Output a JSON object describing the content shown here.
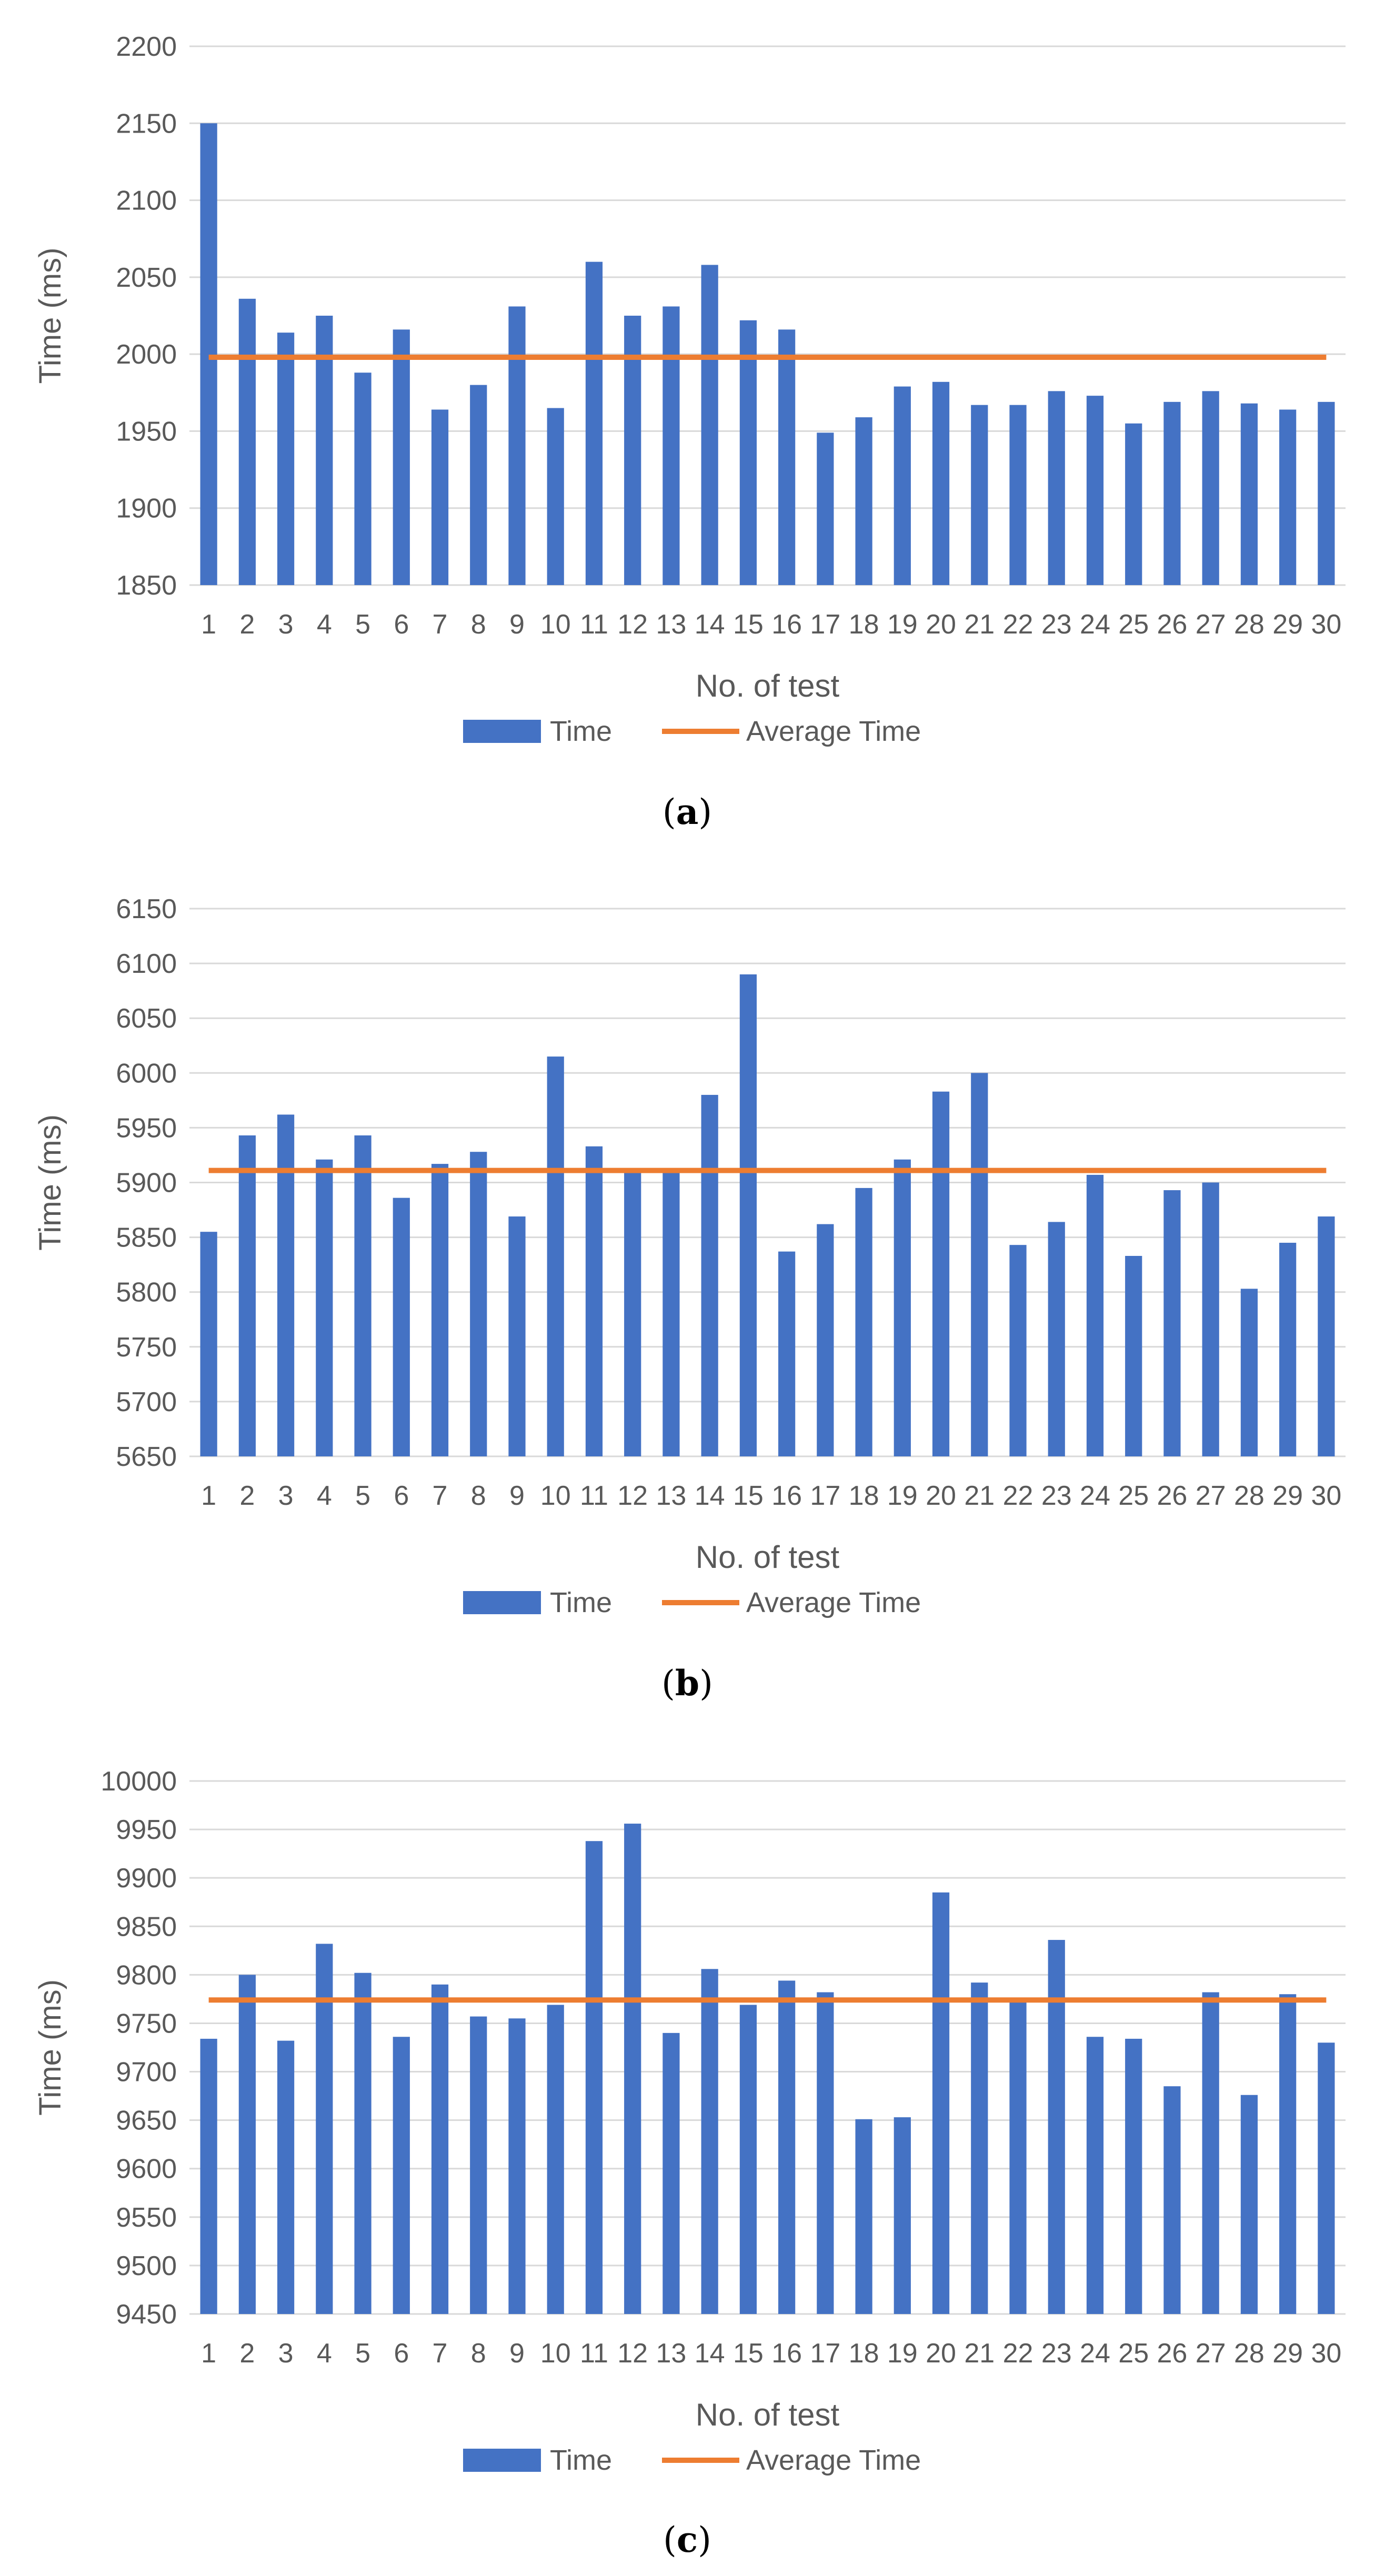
{
  "charts": [
    {
      "caption": {
        "open": "(",
        "letter": "a",
        "close": ")"
      },
      "chart_data": {
        "type": "bar",
        "categories": [
          "1",
          "2",
          "3",
          "4",
          "5",
          "6",
          "7",
          "8",
          "9",
          "10",
          "11",
          "12",
          "13",
          "14",
          "15",
          "16",
          "17",
          "18",
          "19",
          "20",
          "21",
          "22",
          "23",
          "24",
          "25",
          "26",
          "27",
          "28",
          "29",
          "30"
        ],
        "series": [
          {
            "name": "Time",
            "type": "bar",
            "color": "#4472C4",
            "values": [
              2150,
              2036,
              2014,
              2025,
              1988,
              2016,
              1964,
              1980,
              2031,
              1965,
              2060,
              2025,
              2031,
              2058,
              2022,
              2016,
              1949,
              1959,
              1979,
              1982,
              1967,
              1967,
              1976,
              1973,
              1955,
              1969,
              1976,
              1968,
              1964,
              1969
            ]
          },
          {
            "name": "Average Time",
            "type": "line",
            "color": "#ED7D31",
            "value": 1998
          }
        ],
        "xlabel": "No. of test",
        "ylabel": "Time (ms)",
        "ylim": [
          1850,
          2200
        ],
        "yticks": [
          1850,
          1900,
          1950,
          2000,
          2050,
          2100,
          2150,
          2200
        ],
        "grid": true,
        "legend": "bottom"
      }
    },
    {
      "caption": {
        "open": "(",
        "letter": "b",
        "close": ")"
      },
      "chart_data": {
        "type": "bar",
        "categories": [
          "1",
          "2",
          "3",
          "4",
          "5",
          "6",
          "7",
          "8",
          "9",
          "10",
          "11",
          "12",
          "13",
          "14",
          "15",
          "16",
          "17",
          "18",
          "19",
          "20",
          "21",
          "22",
          "23",
          "24",
          "25",
          "26",
          "27",
          "28",
          "29",
          "30"
        ],
        "series": [
          {
            "name": "Time",
            "type": "bar",
            "color": "#4472C4",
            "values": [
              5855,
              5943,
              5962,
              5921,
              5943,
              5886,
              5917,
              5928,
              5869,
              6015,
              5933,
              5910,
              5910,
              5980,
              6090,
              5837,
              5862,
              5895,
              5921,
              5983,
              6000,
              5843,
              5864,
              5907,
              5833,
              5893,
              5900,
              5803,
              5845,
              5869
            ]
          },
          {
            "name": "Average Time",
            "type": "line",
            "color": "#ED7D31",
            "value": 5911
          }
        ],
        "xlabel": "No. of test",
        "ylabel": "Time (ms)",
        "ylim": [
          5650,
          6150
        ],
        "yticks": [
          5650,
          5700,
          5750,
          5800,
          5850,
          5900,
          5950,
          6000,
          6050,
          6100,
          6150
        ],
        "grid": true,
        "legend": "bottom"
      }
    },
    {
      "caption": {
        "open": "(",
        "letter": "c",
        "close": ")"
      },
      "chart_data": {
        "type": "bar",
        "categories": [
          "1",
          "2",
          "3",
          "4",
          "5",
          "6",
          "7",
          "8",
          "9",
          "10",
          "11",
          "12",
          "13",
          "14",
          "15",
          "16",
          "17",
          "18",
          "19",
          "20",
          "21",
          "22",
          "23",
          "24",
          "25",
          "26",
          "27",
          "28",
          "29",
          "30"
        ],
        "series": [
          {
            "name": "Time",
            "type": "bar",
            "color": "#4472C4",
            "values": [
              9734,
              9800,
              9732,
              9832,
              9802,
              9736,
              9790,
              9757,
              9755,
              9769,
              9938,
              9956,
              9740,
              9806,
              9769,
              9794,
              9782,
              9651,
              9653,
              9885,
              9792,
              9773,
              9836,
              9736,
              9734,
              9685,
              9782,
              9676,
              9780,
              9730
            ]
          },
          {
            "name": "Average Time",
            "type": "line",
            "color": "#ED7D31",
            "value": 9774
          }
        ],
        "xlabel": "No. of test",
        "ylabel": "Time (ms)",
        "ylim": [
          9450,
          10000
        ],
        "yticks": [
          9450,
          9500,
          9550,
          9600,
          9650,
          9700,
          9750,
          9800,
          9850,
          9900,
          9950,
          10000
        ],
        "grid": true,
        "legend": "bottom"
      }
    }
  ]
}
